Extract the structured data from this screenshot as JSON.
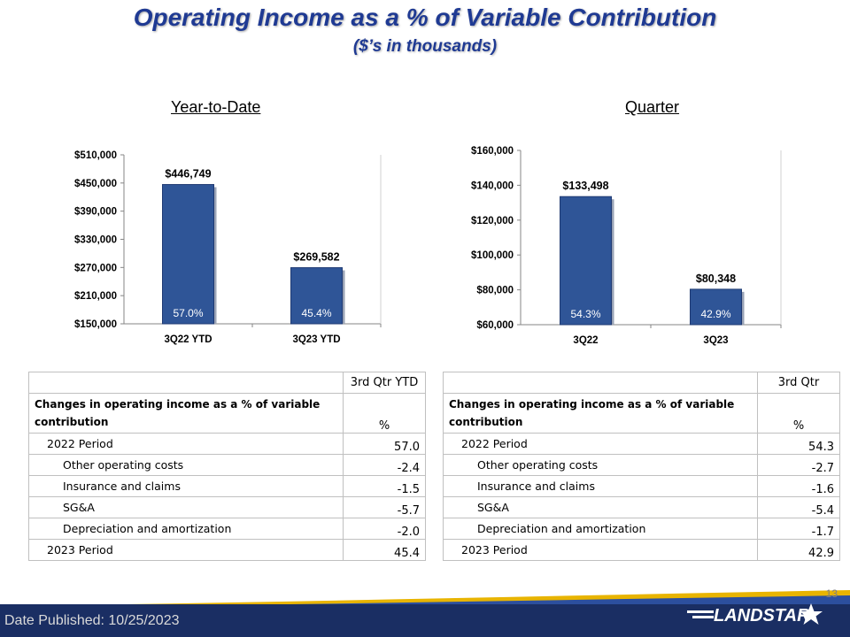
{
  "header": {
    "title": "Operating Income as a % of Variable Contribution",
    "subtitle": "($’s in thousands)"
  },
  "sections": {
    "ytd": "Year-to-Date",
    "quarter": "Quarter"
  },
  "chart_data": [
    {
      "type": "bar",
      "title": "Year-to-Date",
      "categories": [
        "3Q22 YTD",
        "3Q23 YTD"
      ],
      "values": [
        446749,
        269582
      ],
      "value_labels": [
        "$446,749",
        "$269,582"
      ],
      "percent_labels": [
        "57.0%",
        "45.4%"
      ],
      "yticks": [
        "$150,000",
        "$210,000",
        "$270,000",
        "$330,000",
        "$390,000",
        "$450,000",
        "$510,000"
      ],
      "ylim": [
        150000,
        510000
      ],
      "color": "#2f5597",
      "xlabel": "",
      "ylabel": ""
    },
    {
      "type": "bar",
      "title": "Quarter",
      "categories": [
        "3Q22",
        "3Q23"
      ],
      "values": [
        133498,
        80348
      ],
      "value_labels": [
        "$133,498",
        "$80,348"
      ],
      "percent_labels": [
        "54.3%",
        "42.9%"
      ],
      "yticks": [
        "$60,000",
        "$80,000",
        "$100,000",
        "$120,000",
        "$140,000",
        "$160,000"
      ],
      "ylim": [
        60000,
        160000
      ],
      "color": "#2f5597",
      "xlabel": "",
      "ylabel": ""
    }
  ],
  "tables": {
    "ytd": {
      "column": "3rd Qtr YTD",
      "desc_label": "Changes in operating income as a % of variable contribution",
      "unit": "%",
      "rows": [
        {
          "label": "2022 Period",
          "value": "57.0"
        },
        {
          "label": "Other operating costs",
          "value": "-2.4"
        },
        {
          "label": "Insurance and claims",
          "value": "-1.5"
        },
        {
          "label": "SG&A",
          "value": "-5.7"
        },
        {
          "label": "Depreciation and amortization",
          "value": "-2.0"
        },
        {
          "label": "2023 Period",
          "value": "45.4"
        }
      ]
    },
    "quarter": {
      "column": "3rd Qtr",
      "desc_label": "Changes in operating income as a % of variable contribution",
      "unit": "%",
      "rows": [
        {
          "label": "2022 Period",
          "value": "54.3"
        },
        {
          "label": "Other operating costs",
          "value": "-2.7"
        },
        {
          "label": "Insurance and claims",
          "value": "-1.6"
        },
        {
          "label": "SG&A",
          "value": "-5.4"
        },
        {
          "label": "Depreciation and amortization",
          "value": "-1.7"
        },
        {
          "label": "2023 Period",
          "value": "42.9"
        }
      ]
    }
  },
  "footer": {
    "date": "Date Published:  10/25/2023",
    "page": "13",
    "logo_text": "LANDSTAR"
  }
}
